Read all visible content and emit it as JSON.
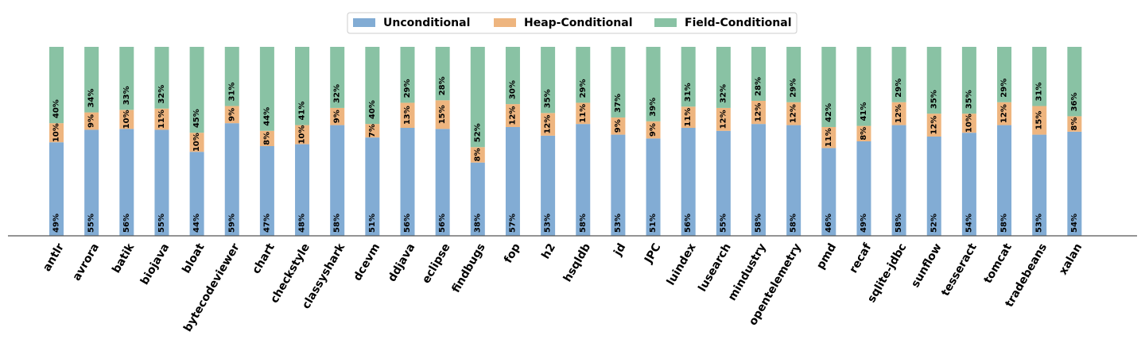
{
  "chart_data": {
    "type": "bar",
    "stacked": true,
    "normalized": true,
    "title": "",
    "xlabel": "",
    "ylabel": "",
    "ylim": [
      0,
      100
    ],
    "legend_position": "top-center",
    "grid": false,
    "categories": [
      "antlr",
      "avrora",
      "batik",
      "biojava",
      "bloat",
      "bytecodeviewer",
      "chart",
      "checkstyle",
      "classyshark",
      "dcevm",
      "ddjava",
      "eclipse",
      "findbugs",
      "fop",
      "h2",
      "hsqldb",
      "jd",
      "JPC",
      "luindex",
      "lusearch",
      "mindustry",
      "opentelemetry",
      "pmd",
      "recaf",
      "sqlite-jdbc",
      "sunflow",
      "tesseract",
      "tomcat",
      "tradebeans",
      "xalan"
    ],
    "series": [
      {
        "name": "Unconditional",
        "color": "#82acd4",
        "values": [
          49,
          55,
          56,
          55,
          44,
          59,
          47,
          48,
          58,
          51,
          56,
          56,
          38,
          57,
          53,
          58,
          53,
          51,
          56,
          55,
          58,
          58,
          46,
          49,
          58,
          52,
          54,
          58,
          53,
          54
        ]
      },
      {
        "name": "Heap-Conditional",
        "color": "#eeb57f",
        "values": [
          10,
          9,
          10,
          11,
          10,
          9,
          8,
          10,
          9,
          7,
          13,
          15,
          8,
          12,
          12,
          11,
          9,
          9,
          11,
          12,
          12,
          12,
          11,
          8,
          12,
          12,
          10,
          12,
          15,
          8
        ]
      },
      {
        "name": "Field-Conditional",
        "color": "#89c2a4",
        "values": [
          40,
          34,
          33,
          32,
          45,
          31,
          44,
          41,
          32,
          40,
          29,
          28,
          52,
          30,
          35,
          29,
          37,
          39,
          31,
          32,
          28,
          29,
          42,
          41,
          29,
          35,
          35,
          29,
          31,
          36
        ]
      }
    ]
  }
}
